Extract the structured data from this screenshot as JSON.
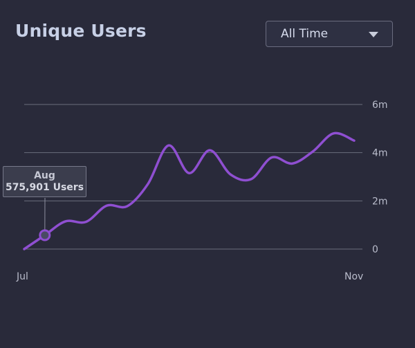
{
  "header": {
    "title": "Unique Users",
    "range_dropdown": {
      "selected": "All Time"
    }
  },
  "tooltip": {
    "title": "Aug",
    "value": "575,901 Users"
  },
  "colors": {
    "background": "#292a3a",
    "line": "#8f4fd1",
    "grid": "#6b6e7c"
  },
  "chart_data": {
    "type": "line",
    "x_tick_labels": [
      "Jul",
      "Nov"
    ],
    "y_tick_labels": [
      "0",
      "2m",
      "4m",
      "6m"
    ],
    "ylim": [
      0,
      6000000
    ],
    "grid": true,
    "series": [
      {
        "values": [
          0,
          575901,
          1150000,
          1130000,
          1800000,
          1780000,
          2700000,
          4300000,
          3150000,
          4100000,
          3100000,
          2900000,
          3800000,
          3550000,
          4050000,
          4800000,
          4500000
        ]
      }
    ],
    "highlighted_point": {
      "index": 1,
      "value": 575901
    }
  }
}
